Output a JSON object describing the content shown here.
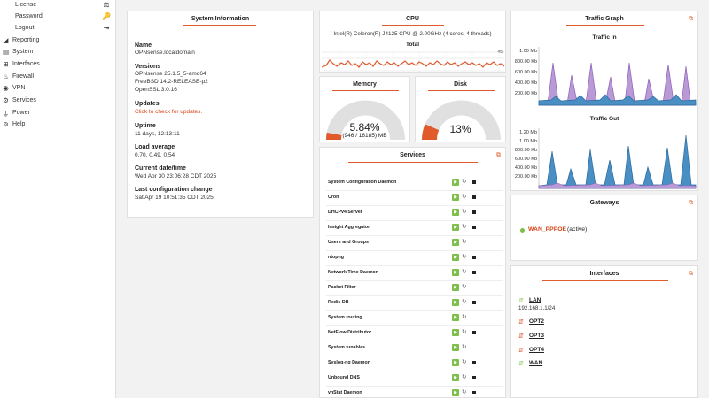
{
  "sidebar": {
    "sub_items": [
      {
        "label": "License",
        "icon": "scale-icon"
      },
      {
        "label": "Password",
        "icon": "key-icon"
      },
      {
        "label": "Logout",
        "icon": "sign-out-icon"
      }
    ],
    "nav_items": [
      {
        "label": "Reporting",
        "icon": "area-chart-icon"
      },
      {
        "label": "System",
        "icon": "server-icon"
      },
      {
        "label": "Interfaces",
        "icon": "sitemap-icon"
      },
      {
        "label": "Firewall",
        "icon": "fire-icon"
      },
      {
        "label": "VPN",
        "icon": "globe-icon"
      },
      {
        "label": "Services",
        "icon": "cogs-icon"
      },
      {
        "label": "Power",
        "icon": "plug-icon"
      },
      {
        "label": "Help",
        "icon": "life-ring-icon"
      }
    ]
  },
  "system_info": {
    "title": "System Information",
    "name_label": "Name",
    "name_value": "OPNsense.localdomain",
    "versions_label": "Versions",
    "versions_lines": [
      "OPNsense 25.1.5_5-amd64",
      "FreeBSD 14.2-RELEASE-p2",
      "OpenSSL 3.0.16"
    ],
    "updates_label": "Updates",
    "updates_value": "Click to check for updates.",
    "uptime_label": "Uptime",
    "uptime_value": "11 days, 12:13:11",
    "load_label": "Load average",
    "load_value": "0.70, 0.49, 0.54",
    "datetime_label": "Current date/time",
    "datetime_value": "Wed Apr 30 23:06:28 CDT 2025",
    "lastconfig_label": "Last configuration change",
    "lastconfig_value": "Sat Apr 19 10:51:35 CDT 2025"
  },
  "cpu": {
    "title": "CPU",
    "model": "Intel(R) Celeron(R) J4125 CPU @ 2.00GHz (4 cores, 4 threads)",
    "total_label": "Total",
    "max_label": "45",
    "colors": {
      "line": "#e05a2b"
    }
  },
  "memory": {
    "title": "Memory",
    "percent_text": "5.84%",
    "detail_text": "(946 / 16185) MB",
    "fraction": 0.0584
  },
  "disk": {
    "title": "Disk",
    "percent_text": "13%",
    "fraction": 0.13
  },
  "services": {
    "title": "Services",
    "items": [
      {
        "name": "System Configuration Daemon",
        "stop": true
      },
      {
        "name": "Cron",
        "stop": true
      },
      {
        "name": "DHCPv4 Server",
        "stop": true
      },
      {
        "name": "Insight Aggregator",
        "stop": true
      },
      {
        "name": "Users and Groups",
        "stop": false
      },
      {
        "name": "ntopng",
        "stop": true
      },
      {
        "name": "Network Time Daemon",
        "stop": true
      },
      {
        "name": "Packet Filter",
        "stop": false
      },
      {
        "name": "Redis DB",
        "stop": true
      },
      {
        "name": "System routing",
        "stop": false
      },
      {
        "name": "NetFlow Distributor",
        "stop": true
      },
      {
        "name": "System tunables",
        "stop": false
      },
      {
        "name": "Syslog-ng Daemon",
        "stop": true
      },
      {
        "name": "Unbound DNS",
        "stop": true
      },
      {
        "name": "vnStat Daemon",
        "stop": true
      }
    ]
  },
  "traffic": {
    "title": "Traffic Graph",
    "in_title": "Traffic In",
    "out_title": "Traffic Out",
    "in_ticks": [
      "1.00 Mb",
      "800.00 Kb",
      "600.00 Kb",
      "400.00 Kb",
      "200.00 Kb"
    ],
    "out_ticks": [
      "1.20 Mb",
      "1.00 Mb",
      "800.00 Kb",
      "600.00 Kb",
      "400.00 Kb",
      "200.00 Kb"
    ],
    "colors": {
      "purple": "#b99ad6",
      "purple_line": "#8a5fb8",
      "blue": "#4a8fc4",
      "blue_line": "#2a6a9e"
    }
  },
  "gateways": {
    "title": "Gateways",
    "items": [
      {
        "name": "WAN_PPPOE",
        "status": "(active)",
        "color": "#7dbf4a"
      }
    ]
  },
  "interfaces": {
    "title": "Interfaces",
    "items": [
      {
        "name": "LAN",
        "address": "192.168.1.1/24",
        "state": "up"
      },
      {
        "name": "OPT2",
        "address": "",
        "state": "down"
      },
      {
        "name": "OPT3",
        "address": "",
        "state": "down"
      },
      {
        "name": "OPT4",
        "address": "",
        "state": "down"
      },
      {
        "name": "WAN",
        "address": "",
        "state": "up"
      }
    ]
  },
  "colors": {
    "accent": "#e05a2b",
    "up": "#7dbf4a",
    "down": "#d9441a"
  }
}
